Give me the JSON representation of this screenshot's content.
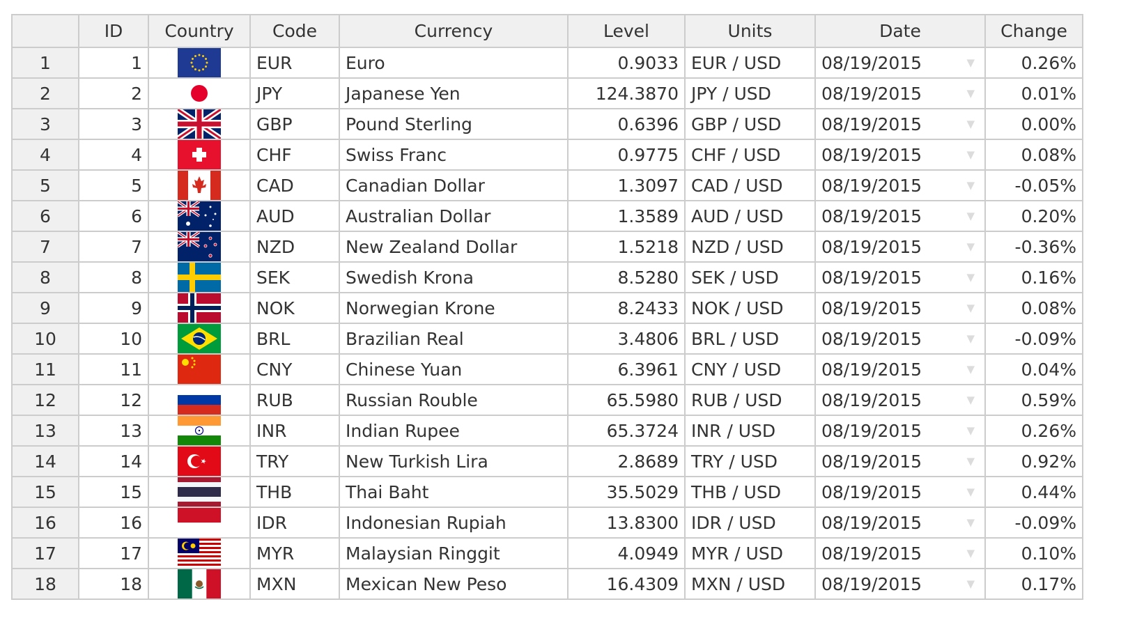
{
  "table": {
    "headers": [
      "",
      "ID",
      "Country",
      "Code",
      "Currency",
      "Level",
      "Units",
      "Date",
      "Change"
    ],
    "rows": [
      {
        "num": "1",
        "id": "1",
        "flag": "eu",
        "code": "EUR",
        "currency": "Euro",
        "level": "0.9033",
        "units": "EUR / USD",
        "date": "08/19/2015",
        "change": "0.26%"
      },
      {
        "num": "2",
        "id": "2",
        "flag": "jp",
        "code": "JPY",
        "currency": "Japanese Yen",
        "level": "124.3870",
        "units": "JPY / USD",
        "date": "08/19/2015",
        "change": "0.01%"
      },
      {
        "num": "3",
        "id": "3",
        "flag": "gb",
        "code": "GBP",
        "currency": "Pound Sterling",
        "level": "0.6396",
        "units": "GBP / USD",
        "date": "08/19/2015",
        "change": "0.00%"
      },
      {
        "num": "4",
        "id": "4",
        "flag": "ch",
        "code": "CHF",
        "currency": "Swiss Franc",
        "level": "0.9775",
        "units": "CHF / USD",
        "date": "08/19/2015",
        "change": "0.08%"
      },
      {
        "num": "5",
        "id": "5",
        "flag": "ca",
        "code": "CAD",
        "currency": "Canadian Dollar",
        "level": "1.3097",
        "units": "CAD / USD",
        "date": "08/19/2015",
        "change": "-0.05%"
      },
      {
        "num": "6",
        "id": "6",
        "flag": "au",
        "code": "AUD",
        "currency": "Australian Dollar",
        "level": "1.3589",
        "units": "AUD / USD",
        "date": "08/19/2015",
        "change": "0.20%"
      },
      {
        "num": "7",
        "id": "7",
        "flag": "nz",
        "code": "NZD",
        "currency": "New Zealand Dollar",
        "level": "1.5218",
        "units": "NZD / USD",
        "date": "08/19/2015",
        "change": "-0.36%"
      },
      {
        "num": "8",
        "id": "8",
        "flag": "se",
        "code": "SEK",
        "currency": "Swedish Krona",
        "level": "8.5280",
        "units": "SEK / USD",
        "date": "08/19/2015",
        "change": "0.16%"
      },
      {
        "num": "9",
        "id": "9",
        "flag": "no",
        "code": "NOK",
        "currency": "Norwegian Krone",
        "level": "8.2433",
        "units": "NOK / USD",
        "date": "08/19/2015",
        "change": "0.08%"
      },
      {
        "num": "10",
        "id": "10",
        "flag": "br",
        "code": "BRL",
        "currency": "Brazilian Real",
        "level": "3.4806",
        "units": "BRL / USD",
        "date": "08/19/2015",
        "change": "-0.09%"
      },
      {
        "num": "11",
        "id": "11",
        "flag": "cn",
        "code": "CNY",
        "currency": "Chinese Yuan",
        "level": "6.3961",
        "units": "CNY / USD",
        "date": "08/19/2015",
        "change": "0.04%"
      },
      {
        "num": "12",
        "id": "12",
        "flag": "ru",
        "code": "RUB",
        "currency": "Russian Rouble",
        "level": "65.5980",
        "units": "RUB / USD",
        "date": "08/19/2015",
        "change": "0.59%"
      },
      {
        "num": "13",
        "id": "13",
        "flag": "in",
        "code": "INR",
        "currency": "Indian Rupee",
        "level": "65.3724",
        "units": "INR / USD",
        "date": "08/19/2015",
        "change": "0.26%"
      },
      {
        "num": "14",
        "id": "14",
        "flag": "tr",
        "code": "TRY",
        "currency": "New Turkish Lira",
        "level": "2.8689",
        "units": "TRY / USD",
        "date": "08/19/2015",
        "change": "0.92%"
      },
      {
        "num": "15",
        "id": "15",
        "flag": "th",
        "code": "THB",
        "currency": "Thai Baht",
        "level": "35.5029",
        "units": "THB / USD",
        "date": "08/19/2015",
        "change": "0.44%"
      },
      {
        "num": "16",
        "id": "16",
        "flag": "id",
        "code": "IDR",
        "currency": "Indonesian Rupiah",
        "level": "13.8300",
        "units": "IDR / USD",
        "date": "08/19/2015",
        "change": "-0.09%"
      },
      {
        "num": "17",
        "id": "17",
        "flag": "my",
        "code": "MYR",
        "currency": "Malaysian Ringgit",
        "level": "4.0949",
        "units": "MYR / USD",
        "date": "08/19/2015",
        "change": "0.10%"
      },
      {
        "num": "18",
        "id": "18",
        "flag": "mx",
        "code": "MXN",
        "currency": "Mexican New Peso",
        "level": "16.4309",
        "units": "MXN / USD",
        "date": "08/19/2015",
        "change": "0.17%"
      }
    ]
  }
}
